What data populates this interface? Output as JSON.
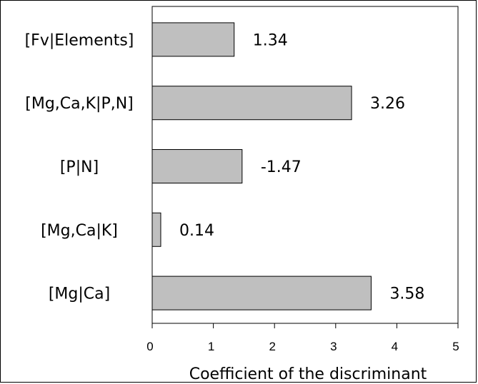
{
  "chart_data": {
    "type": "bar",
    "orientation": "horizontal",
    "categories": [
      "[Fv|Elements]",
      "[Mg,Ca,K|P,N]",
      "[P|N]",
      "[Mg,Ca|K]",
      "[Mg|Ca]"
    ],
    "values": [
      1.34,
      3.26,
      1.47,
      0.14,
      3.58
    ],
    "data_labels": [
      "1.34",
      "3.26",
      "-1.47",
      "0.14",
      "3.58"
    ],
    "xlabel": "Coefficient of the discriminant",
    "xlim": [
      0,
      5
    ],
    "xticks": [
      "0",
      "1",
      "2",
      "3",
      "4",
      "5"
    ],
    "bar_color": "#bfbfbf",
    "grid": false
  }
}
